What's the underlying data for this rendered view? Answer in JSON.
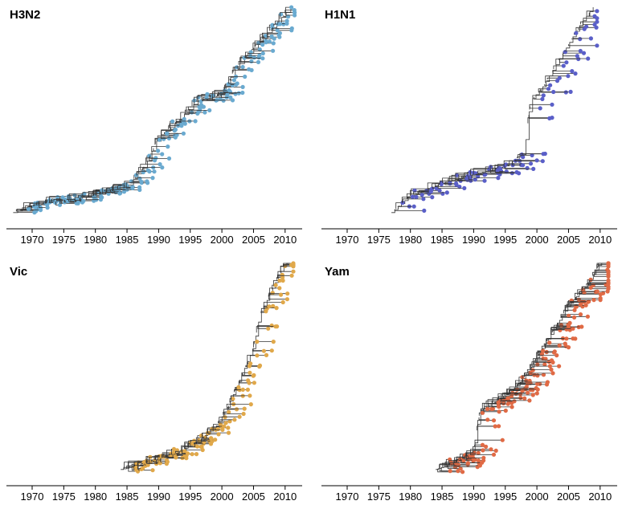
{
  "chart_data": [
    {
      "type": "phylogenetic-tree",
      "title": "H3N2",
      "xlim": [
        1966,
        2012
      ],
      "x_ticks": [
        "1970",
        "1975",
        "1980",
        "1985",
        "1990",
        "1995",
        "2000",
        "2005",
        "2010"
      ],
      "tip_color": "#6aaad0",
      "root_year": 1967,
      "tip_count": 220,
      "last_tip_year": 2011.5,
      "backbone": [
        [
          1967,
          0.02
        ],
        [
          1970,
          0.05
        ],
        [
          1975,
          0.08
        ],
        [
          1980,
          0.1
        ],
        [
          1985,
          0.14
        ],
        [
          1988,
          0.25
        ],
        [
          1990,
          0.38
        ],
        [
          1993,
          0.45
        ],
        [
          1996,
          0.55
        ],
        [
          2000,
          0.58
        ],
        [
          2002,
          0.7
        ],
        [
          2005,
          0.8
        ],
        [
          2008,
          0.9
        ],
        [
          2011,
          1.0
        ]
      ]
    },
    {
      "type": "phylogenetic-tree",
      "title": "H1N1",
      "xlim": [
        1966,
        2012
      ],
      "x_ticks": [
        "1970",
        "1975",
        "1980",
        "1985",
        "1990",
        "1995",
        "2000",
        "2005",
        "2010"
      ],
      "tip_color": "#5a5fc8",
      "root_year": 1977,
      "tip_count": 110,
      "last_tip_year": 2009.5,
      "backbone": [
        [
          1977,
          0.02
        ],
        [
          1980,
          0.1
        ],
        [
          1985,
          0.16
        ],
        [
          1990,
          0.2
        ],
        [
          1995,
          0.24
        ],
        [
          1998,
          0.3
        ],
        [
          1999,
          0.55
        ],
        [
          2001,
          0.62
        ],
        [
          2003,
          0.72
        ],
        [
          2005,
          0.82
        ],
        [
          2007,
          0.92
        ],
        [
          2009,
          1.0
        ]
      ]
    },
    {
      "type": "phylogenetic-tree",
      "title": "Vic",
      "xlim": [
        1966,
        2012
      ],
      "x_ticks": [
        "1970",
        "1975",
        "1980",
        "1985",
        "1990",
        "1995",
        "2000",
        "2005",
        "2010"
      ],
      "tip_color": "#e0a84a",
      "root_year": 1984,
      "tip_count": 150,
      "last_tip_year": 2011.3,
      "backbone": [
        [
          1984,
          0.02
        ],
        [
          1987,
          0.04
        ],
        [
          1990,
          0.07
        ],
        [
          1993,
          0.1
        ],
        [
          1996,
          0.15
        ],
        [
          1999,
          0.22
        ],
        [
          2001,
          0.32
        ],
        [
          2003,
          0.46
        ],
        [
          2005,
          0.6
        ],
        [
          2006,
          0.75
        ],
        [
          2008,
          0.88
        ],
        [
          2010,
          1.0
        ]
      ]
    },
    {
      "type": "phylogenetic-tree",
      "title": "Yam",
      "xlim": [
        1966,
        2012
      ],
      "x_ticks": [
        "1970",
        "1975",
        "1980",
        "1985",
        "1990",
        "1995",
        "2000",
        "2005",
        "2010"
      ],
      "tip_color": "#e06a45",
      "root_year": 1984,
      "tip_count": 190,
      "last_tip_year": 2011.3,
      "backbone": [
        [
          1984,
          0.02
        ],
        [
          1987,
          0.05
        ],
        [
          1990,
          0.1
        ],
        [
          1991,
          0.3
        ],
        [
          1994,
          0.35
        ],
        [
          1997,
          0.42
        ],
        [
          1999,
          0.5
        ],
        [
          2001,
          0.6
        ],
        [
          2003,
          0.7
        ],
        [
          2005,
          0.8
        ],
        [
          2008,
          0.9
        ],
        [
          2010,
          1.0
        ]
      ]
    }
  ]
}
